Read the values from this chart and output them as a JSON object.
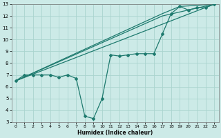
{
  "xlabel": "Humidex (Indice chaleur)",
  "bg_color": "#cceae7",
  "line_color": "#1e7a6e",
  "grid_color": "#aad4ce",
  "xlim": [
    -0.5,
    23.5
  ],
  "ylim": [
    3,
    13
  ],
  "xticks": [
    0,
    1,
    2,
    3,
    4,
    5,
    6,
    7,
    8,
    9,
    10,
    11,
    12,
    13,
    14,
    15,
    16,
    17,
    18,
    19,
    20,
    21,
    22,
    23
  ],
  "yticks": [
    3,
    4,
    5,
    6,
    7,
    8,
    9,
    10,
    11,
    12,
    13
  ],
  "main_line": {
    "x": [
      0,
      1,
      2,
      3,
      4,
      5,
      6,
      7,
      8,
      9,
      10,
      11,
      12,
      13,
      14,
      15,
      16,
      17,
      18,
      19,
      20,
      21,
      22,
      23
    ],
    "y": [
      6.5,
      7.0,
      7.0,
      7.0,
      7.0,
      6.8,
      7.0,
      6.7,
      3.5,
      3.3,
      5.0,
      8.7,
      8.6,
      8.7,
      8.8,
      8.8,
      8.8,
      10.5,
      12.2,
      12.8,
      12.5,
      12.7,
      12.7,
      13.0
    ]
  },
  "straight_lines": [
    {
      "x": [
        0,
        23
      ],
      "y": [
        6.5,
        13.0
      ]
    },
    {
      "x": [
        0,
        17,
        23
      ],
      "y": [
        6.5,
        12.0,
        13.0
      ]
    },
    {
      "x": [
        0,
        17,
        19,
        23
      ],
      "y": [
        6.5,
        12.2,
        12.8,
        13.0
      ]
    }
  ]
}
